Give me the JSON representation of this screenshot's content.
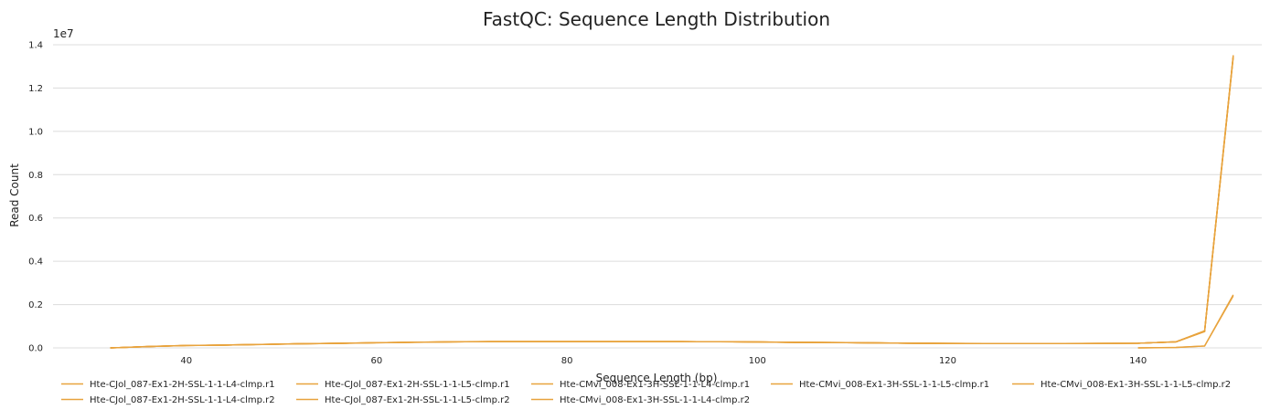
{
  "chart_data": {
    "type": "line",
    "title": "FastQC: Sequence Length Distribution",
    "xlabel": "Sequence Length (bp)",
    "ylabel": "Read Count",
    "y_multiplier": "1e7",
    "xlim": [
      26,
      153
    ],
    "ylim": [
      0,
      14000000
    ],
    "x_ticks": [
      {
        "value": 40,
        "label": "40"
      },
      {
        "value": 60,
        "label": "60"
      },
      {
        "value": 80,
        "label": "80"
      },
      {
        "value": 100,
        "label": "100"
      },
      {
        "value": 120,
        "label": "120"
      },
      {
        "value": 140,
        "label": "140"
      }
    ],
    "y_ticks": [
      {
        "value": 0,
        "label": "0.0"
      },
      {
        "value": 2000000,
        "label": "0.2"
      },
      {
        "value": 4000000,
        "label": "0.4"
      },
      {
        "value": 6000000,
        "label": "0.6"
      },
      {
        "value": 8000000,
        "label": "0.8"
      },
      {
        "value": 10000000,
        "label": "1.0"
      },
      {
        "value": 12000000,
        "label": "1.2"
      },
      {
        "value": 14000000,
        "label": "1.4"
      }
    ],
    "grid": true,
    "legend_position": "bottom",
    "series_color": "#e8a33d",
    "series": [
      {
        "name": "Hte-CJol_087-Ex1-2H-SSL-1-1-L4-clmp.r1",
        "x": [
          32,
          36,
          40,
          44,
          48,
          52,
          56,
          60,
          64,
          68,
          72,
          76,
          80,
          84,
          88,
          92,
          96,
          100,
          104,
          108,
          112,
          116,
          120,
          124,
          128,
          132,
          136,
          140,
          144,
          147,
          150
        ],
        "y": [
          0,
          60000,
          110000,
          130000,
          160000,
          190000,
          210000,
          240000,
          260000,
          280000,
          290000,
          290000,
          290000,
          290000,
          290000,
          290000,
          285000,
          270000,
          255000,
          245000,
          230000,
          215000,
          205000,
          200000,
          200000,
          200000,
          205000,
          215000,
          280000,
          780000,
          13500000
        ]
      },
      {
        "name": "Hte-CJol_087-Ex1-2H-SSL-1-1-L4-clmp.r2",
        "x": [
          32,
          36,
          40,
          44,
          48,
          52,
          56,
          60,
          64,
          68,
          72,
          76,
          80,
          84,
          88,
          92,
          96,
          100,
          104,
          108,
          112,
          116,
          120,
          124,
          128,
          132,
          136,
          140,
          144,
          147,
          150
        ],
        "y": [
          0,
          60000,
          110000,
          130000,
          160000,
          190000,
          210000,
          240000,
          260000,
          280000,
          290000,
          290000,
          290000,
          290000,
          290000,
          290000,
          285000,
          270000,
          255000,
          245000,
          230000,
          215000,
          205000,
          200000,
          200000,
          200000,
          205000,
          215000,
          280000,
          760000,
          13450000
        ]
      },
      {
        "name": "Hte-CJol_087-Ex1-2H-SSL-1-1-L5-clmp.r1",
        "x": [
          32,
          36,
          40,
          44,
          48,
          52,
          56,
          60,
          64,
          68,
          72,
          76,
          80,
          84,
          88,
          92,
          96,
          100,
          104,
          108,
          112,
          116,
          120,
          124,
          128,
          132,
          136,
          140,
          144,
          147,
          150
        ],
        "y": [
          0,
          58000,
          108000,
          128000,
          158000,
          188000,
          208000,
          238000,
          258000,
          278000,
          288000,
          288000,
          288000,
          288000,
          288000,
          288000,
          283000,
          268000,
          253000,
          243000,
          228000,
          213000,
          203000,
          198000,
          198000,
          198000,
          203000,
          213000,
          278000,
          770000,
          13480000
        ]
      },
      {
        "name": "Hte-CJol_087-Ex1-2H-SSL-1-1-L5-clmp.r2",
        "x": [
          32,
          36,
          40,
          44,
          48,
          52,
          56,
          60,
          64,
          68,
          72,
          76,
          80,
          84,
          88,
          92,
          96,
          100,
          104,
          108,
          112,
          116,
          120,
          124,
          128,
          132,
          136,
          140,
          144,
          147,
          150
        ],
        "y": [
          0,
          58000,
          108000,
          128000,
          158000,
          188000,
          208000,
          238000,
          258000,
          278000,
          288000,
          288000,
          288000,
          288000,
          288000,
          288000,
          283000,
          268000,
          253000,
          243000,
          228000,
          213000,
          203000,
          198000,
          198000,
          198000,
          203000,
          213000,
          278000,
          750000,
          13420000
        ]
      },
      {
        "name": "Hte-CMvi_008-Ex1-3H-SSL-1-1-L4-clmp.r1",
        "x": [
          32,
          36,
          40,
          44,
          48,
          52,
          56,
          60,
          64,
          68,
          72,
          76,
          80,
          84,
          88,
          92,
          96,
          100,
          104,
          108,
          112,
          116,
          120,
          124,
          128,
          132,
          136,
          140,
          144,
          147,
          150
        ],
        "y": [
          0,
          62000,
          112000,
          132000,
          162000,
          192000,
          212000,
          242000,
          262000,
          282000,
          292000,
          292000,
          292000,
          292000,
          292000,
          292000,
          287000,
          272000,
          257000,
          247000,
          232000,
          217000,
          207000,
          202000,
          202000,
          202000,
          207000,
          217000,
          282000,
          790000,
          13520000
        ]
      },
      {
        "name": "Hte-CMvi_008-Ex1-3H-SSL-1-1-L4-clmp.r2",
        "x": [
          32,
          36,
          40,
          44,
          48,
          52,
          56,
          60,
          64,
          68,
          72,
          76,
          80,
          84,
          88,
          92,
          96,
          100,
          104,
          108,
          112,
          116,
          120,
          124,
          128,
          132,
          136,
          140,
          144,
          147,
          150
        ],
        "y": [
          0,
          62000,
          112000,
          132000,
          162000,
          192000,
          212000,
          242000,
          262000,
          282000,
          292000,
          292000,
          292000,
          292000,
          292000,
          292000,
          287000,
          272000,
          257000,
          247000,
          232000,
          217000,
          207000,
          202000,
          202000,
          202000,
          207000,
          217000,
          282000,
          775000,
          13460000
        ]
      },
      {
        "name": "Hte-CMvi_008-Ex1-3H-SSL-1-1-L5-clmp.r1",
        "x": [
          140,
          144,
          147,
          150
        ],
        "y": [
          0,
          20000,
          90000,
          2450000
        ]
      },
      {
        "name": "Hte-CMvi_008-Ex1-3H-SSL-1-1-L5-clmp.r2",
        "x": [
          140,
          144,
          147,
          150
        ],
        "y": [
          0,
          18000,
          85000,
          2400000
        ]
      }
    ]
  }
}
